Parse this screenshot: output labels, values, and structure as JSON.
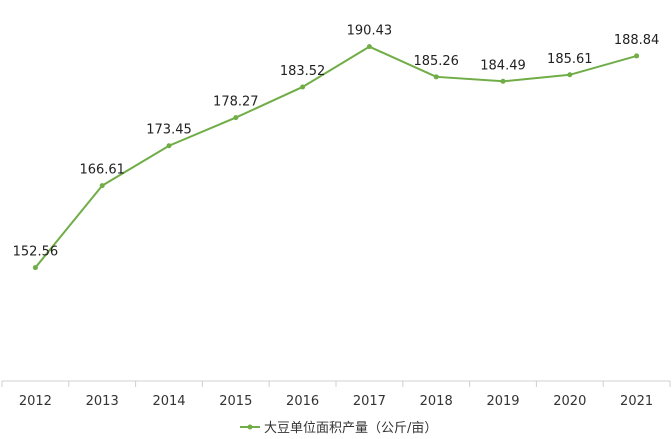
{
  "chart_data": {
    "type": "line",
    "title": "",
    "xlabel": "",
    "ylabel": "",
    "categories": [
      "2012",
      "2013",
      "2014",
      "2015",
      "2016",
      "2017",
      "2018",
      "2019",
      "2020",
      "2021"
    ],
    "series": [
      {
        "name": "大豆单位面积产量（公斤/亩）",
        "values": [
          152.56,
          166.61,
          173.45,
          178.27,
          183.52,
          190.43,
          185.26,
          184.49,
          185.61,
          188.84
        ],
        "data_labels": [
          "152.56",
          "166.61",
          "173.45",
          "178.27",
          "183.52",
          "190.43",
          "185.26",
          "184.49",
          "185.61",
          "188.84"
        ],
        "color": "#70ad47"
      }
    ],
    "ylim": [
      135,
      195
    ],
    "y_axis_visible": false,
    "grid": false,
    "legend_position": "bottom-center"
  }
}
